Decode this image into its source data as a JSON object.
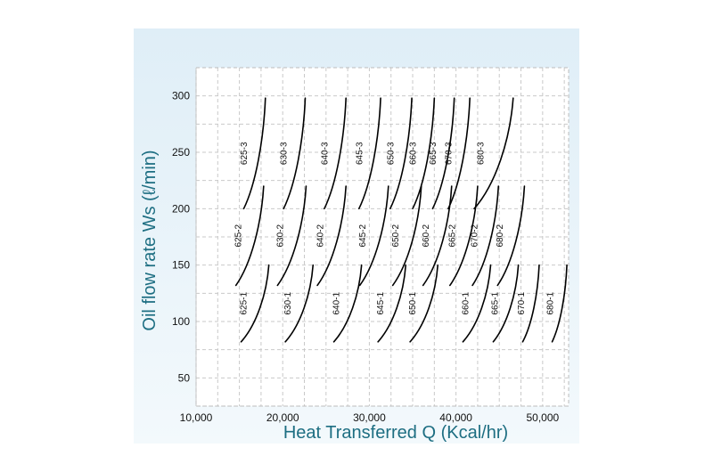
{
  "colors": {
    "panel_top": "#dfeef7",
    "panel_bottom": "#f3f9fc",
    "plot_bg": "#ffffff",
    "grid": "#c9c9c9",
    "curve": "#000000",
    "axis_title": "#1d6e82"
  },
  "chart_data": {
    "type": "line",
    "xlabel": "Heat Transferred Q (Kcal/hr)",
    "ylabel": "Oil flow rate Ws (ℓ/min)",
    "xlim": [
      10000,
      53000
    ],
    "ylim": [
      25,
      325
    ],
    "xticks": [
      10000,
      20000,
      30000,
      40000,
      50000
    ],
    "xtick_labels": [
      "10,000",
      "20,000",
      "30,000",
      "40,000",
      "50,000"
    ],
    "yticks": [
      50,
      100,
      150,
      200,
      250,
      300
    ],
    "ytick_labels": [
      "50",
      "100",
      "150",
      "200",
      "250",
      "300"
    ],
    "grid": true,
    "legend": "none",
    "series": [
      {
        "name": "625-1",
        "x": [
          15200,
          18400
        ],
        "y": [
          82,
          150
        ]
      },
      {
        "name": "630-1",
        "x": [
          20300,
          23500
        ],
        "y": [
          82,
          150
        ]
      },
      {
        "name": "640-1",
        "x": [
          25900,
          29100
        ],
        "y": [
          82,
          150
        ]
      },
      {
        "name": "645-1",
        "x": [
          31000,
          34200
        ],
        "y": [
          82,
          150
        ]
      },
      {
        "name": "650-1",
        "x": [
          34700,
          37900
        ],
        "y": [
          82,
          150
        ]
      },
      {
        "name": "660-1",
        "x": [
          40800,
          44000
        ],
        "y": [
          82,
          150
        ]
      },
      {
        "name": "665-1",
        "x": [
          44300,
          47200
        ],
        "y": [
          82,
          150
        ]
      },
      {
        "name": "670-1",
        "x": [
          47700,
          49600
        ],
        "y": [
          82,
          150
        ]
      },
      {
        "name": "680-1",
        "x": [
          51100,
          52800
        ],
        "y": [
          82,
          150
        ]
      },
      {
        "name": "625-2",
        "x": [
          14600,
          17800
        ],
        "y": [
          132,
          220
        ]
      },
      {
        "name": "630-2",
        "x": [
          19400,
          22700
        ],
        "y": [
          132,
          220
        ]
      },
      {
        "name": "640-2",
        "x": [
          24000,
          27300
        ],
        "y": [
          132,
          220
        ]
      },
      {
        "name": "645-2",
        "x": [
          28900,
          32200
        ],
        "y": [
          132,
          220
        ]
      },
      {
        "name": "650-2",
        "x": [
          32700,
          36000
        ],
        "y": [
          132,
          220
        ]
      },
      {
        "name": "660-2",
        "x": [
          36200,
          39500
        ],
        "y": [
          132,
          220
        ]
      },
      {
        "name": "665-2",
        "x": [
          39300,
          42500
        ],
        "y": [
          132,
          220
        ]
      },
      {
        "name": "670-2",
        "x": [
          41900,
          44900
        ],
        "y": [
          132,
          220
        ]
      },
      {
        "name": "680-2",
        "x": [
          44800,
          47900
        ],
        "y": [
          132,
          220
        ]
      },
      {
        "name": "625-3",
        "x": [
          15500,
          18000
        ],
        "y": [
          200,
          298
        ]
      },
      {
        "name": "630-3",
        "x": [
          20100,
          22600
        ],
        "y": [
          200,
          298
        ]
      },
      {
        "name": "640-3",
        "x": [
          24800,
          27300
        ],
        "y": [
          200,
          298
        ]
      },
      {
        "name": "645-3",
        "x": [
          28800,
          31300
        ],
        "y": [
          200,
          298
        ]
      },
      {
        "name": "650-3",
        "x": [
          32400,
          34900
        ],
        "y": [
          200,
          298
        ]
      },
      {
        "name": "660-3",
        "x": [
          35000,
          37500
        ],
        "y": [
          200,
          298
        ]
      },
      {
        "name": "665-3",
        "x": [
          37300,
          39800
        ],
        "y": [
          200,
          298
        ]
      },
      {
        "name": "670-3",
        "x": [
          39100,
          41600
        ],
        "y": [
          200,
          298
        ]
      },
      {
        "name": "680-3",
        "x": [
          42100,
          46600
        ],
        "y": [
          200,
          298
        ]
      }
    ]
  }
}
